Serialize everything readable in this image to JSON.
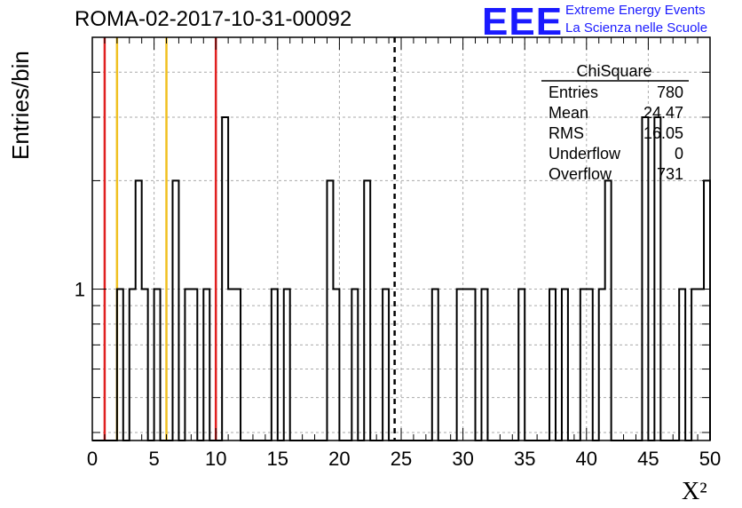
{
  "header": {
    "title": "ROMA-02-2017-10-31-00092",
    "logo_text": "EEE",
    "logo_line1": "Extreme Energy Events",
    "logo_line2": "La Scienza nelle Scuole"
  },
  "chart_data": {
    "type": "bar",
    "title": "ROMA-02-2017-10-31-00092",
    "xlabel": "X²",
    "ylabel": "Entries/bin",
    "xlim": [
      0,
      50
    ],
    "ylim_log": [
      0.38,
      5.0
    ],
    "log_y": true,
    "grid": true,
    "x_ticks": [
      "0",
      "5",
      "10",
      "15",
      "20",
      "25",
      "30",
      "35",
      "40",
      "45",
      "50"
    ],
    "y_ticks": [
      "1"
    ],
    "bin_width": 0.5,
    "bins": [
      {
        "x": 2.0,
        "y": 1
      },
      {
        "x": 3.0,
        "y": 1
      },
      {
        "x": 3.5,
        "y": 2
      },
      {
        "x": 4.0,
        "y": 1
      },
      {
        "x": 5.0,
        "y": 1
      },
      {
        "x": 6.5,
        "y": 2
      },
      {
        "x": 7.5,
        "y": 1
      },
      {
        "x": 8.0,
        "y": 1
      },
      {
        "x": 9.0,
        "y": 1
      },
      {
        "x": 10.5,
        "y": 3
      },
      {
        "x": 11.0,
        "y": 1
      },
      {
        "x": 11.5,
        "y": 1
      },
      {
        "x": 14.5,
        "y": 1
      },
      {
        "x": 15.5,
        "y": 1
      },
      {
        "x": 19.0,
        "y": 2
      },
      {
        "x": 19.5,
        "y": 1
      },
      {
        "x": 21.0,
        "y": 1
      },
      {
        "x": 22.0,
        "y": 2
      },
      {
        "x": 23.5,
        "y": 1
      },
      {
        "x": 27.5,
        "y": 1
      },
      {
        "x": 29.5,
        "y": 1
      },
      {
        "x": 30.0,
        "y": 1
      },
      {
        "x": 30.5,
        "y": 1
      },
      {
        "x": 31.5,
        "y": 1
      },
      {
        "x": 34.5,
        "y": 1
      },
      {
        "x": 37.0,
        "y": 1
      },
      {
        "x": 38.0,
        "y": 1
      },
      {
        "x": 39.5,
        "y": 1
      },
      {
        "x": 40.0,
        "y": 1
      },
      {
        "x": 41.0,
        "y": 1
      },
      {
        "x": 41.5,
        "y": 2
      },
      {
        "x": 44.5,
        "y": 3
      },
      {
        "x": 45.5,
        "y": 3
      },
      {
        "x": 47.5,
        "y": 1
      },
      {
        "x": 48.5,
        "y": 1
      },
      {
        "x": 49.0,
        "y": 1
      },
      {
        "x": 49.5,
        "y": 2
      }
    ],
    "vertical_lines": [
      {
        "x": 1.0,
        "color": "#e02020",
        "style": "solid"
      },
      {
        "x": 2.0,
        "color": "#f0c020",
        "style": "solid"
      },
      {
        "x": 6.0,
        "color": "#f0c020",
        "style": "solid"
      },
      {
        "x": 10.0,
        "color": "#e02020",
        "style": "solid"
      },
      {
        "x": 24.47,
        "color": "#000000",
        "style": "dashed"
      }
    ],
    "stats": {
      "title": "ChiSquare",
      "rows": [
        {
          "label": "Entries",
          "value": "780"
        },
        {
          "label": "Mean",
          "value": "24.47"
        },
        {
          "label": "RMS",
          "value": "16.05"
        },
        {
          "label": "Underflow",
          "value": "0"
        },
        {
          "label": "Overflow",
          "value": "731"
        }
      ]
    }
  }
}
